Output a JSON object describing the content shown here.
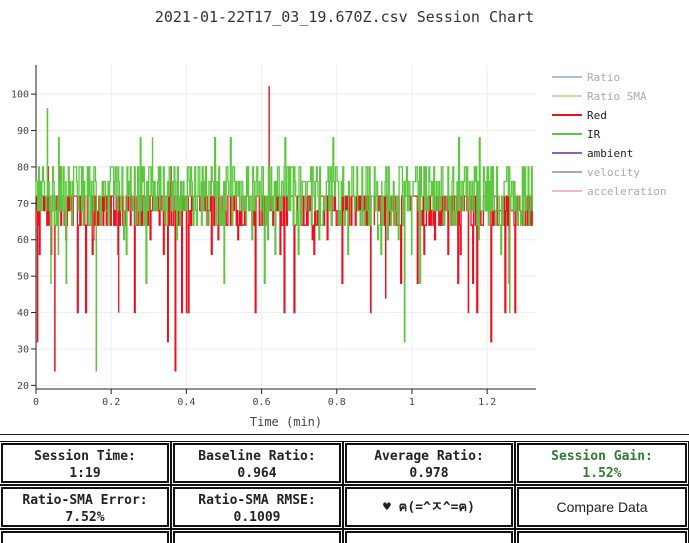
{
  "chart_data": {
    "type": "line",
    "title": "2021-01-22T17_03_19.670Z.csv Session Chart",
    "xlabel": "Time (min)",
    "ylabel": "",
    "xlim": [
      0,
      1.33
    ],
    "ylim": [
      19,
      108
    ],
    "xticks": [
      "0",
      "0.2",
      "0.4",
      "0.6",
      "0.8",
      "1",
      "1.2"
    ],
    "xtick_values": [
      0,
      0.2,
      0.4,
      0.6,
      0.8,
      1.0,
      1.2
    ],
    "yticks": [
      "20",
      "30",
      "40",
      "50",
      "60",
      "70",
      "80",
      "90",
      "100"
    ],
    "ytick_values": [
      20,
      30,
      40,
      50,
      60,
      70,
      80,
      90,
      100
    ],
    "grid": true,
    "legend_position": "right",
    "series": [
      {
        "name": "Ratio",
        "color": "#9ec5e8",
        "values": []
      },
      {
        "name": "Ratio SMA",
        "color": "#f5c6a0",
        "values": []
      },
      {
        "name": "Red",
        "color": "#e8121e",
        "x": [
          0,
          0.004,
          0.008,
          0.05,
          0.06,
          0.11,
          0.12,
          0.22,
          0.23,
          0.35,
          0.36,
          0.37,
          0.39,
          0.4,
          0.61,
          0.62,
          0.63,
          0.64,
          0.66,
          0.68,
          0.89,
          0.9,
          0.93,
          1.14,
          1.15,
          1.18,
          1.21,
          1.22,
          1.32
        ],
        "values": [
          64,
          32,
          72,
          24,
          72,
          40,
          72,
          40,
          72,
          32,
          72,
          24,
          72,
          40,
          72,
          102,
          64,
          72,
          40,
          72,
          40,
          72,
          44,
          72,
          40,
          72,
          32,
          72,
          64
        ]
      },
      {
        "name": "IR",
        "color": "#5cc63e",
        "x": [
          0,
          0.03,
          0.04,
          0.06,
          0.08,
          0.1,
          0.16,
          0.17,
          0.2,
          0.3,
          0.31,
          0.44,
          0.5,
          0.53,
          0.56,
          0.7,
          0.72,
          0.92,
          0.98,
          1.0,
          1.02,
          1.2,
          1.26,
          1.3,
          1.32
        ],
        "values": [
          72,
          96,
          64,
          88,
          48,
          80,
          24,
          72,
          80,
          80,
          88,
          64,
          48,
          72,
          80,
          80,
          72,
          72,
          32,
          72,
          80,
          80,
          40,
          72,
          80
        ]
      },
      {
        "name": "ambient",
        "color": "#8a63b8",
        "values": []
      },
      {
        "name": "velocity",
        "color": "#bba3a3",
        "values": []
      },
      {
        "name": "acceleration",
        "color": "#f2b5d6",
        "values": []
      }
    ]
  },
  "stats": {
    "session_time_label": "Session Time:",
    "session_time_value": "1:19",
    "baseline_ratio_label": "Baseline Ratio:",
    "baseline_ratio_value": "0.964",
    "average_ratio_label": "Average Ratio:",
    "average_ratio_value": "0.978",
    "session_gain_label": "Session Gain:",
    "session_gain_value": "1.52%",
    "sma_error_label": "Ratio-SMA Error:",
    "sma_error_value": "7.52%",
    "sma_rmse_label": "Ratio-SMA RMSE:",
    "sma_rmse_value": "0.1009",
    "face_text": "♥ ฅ(=^ㅈ^=ฅ)",
    "compare_button_label": "Compare Data"
  }
}
